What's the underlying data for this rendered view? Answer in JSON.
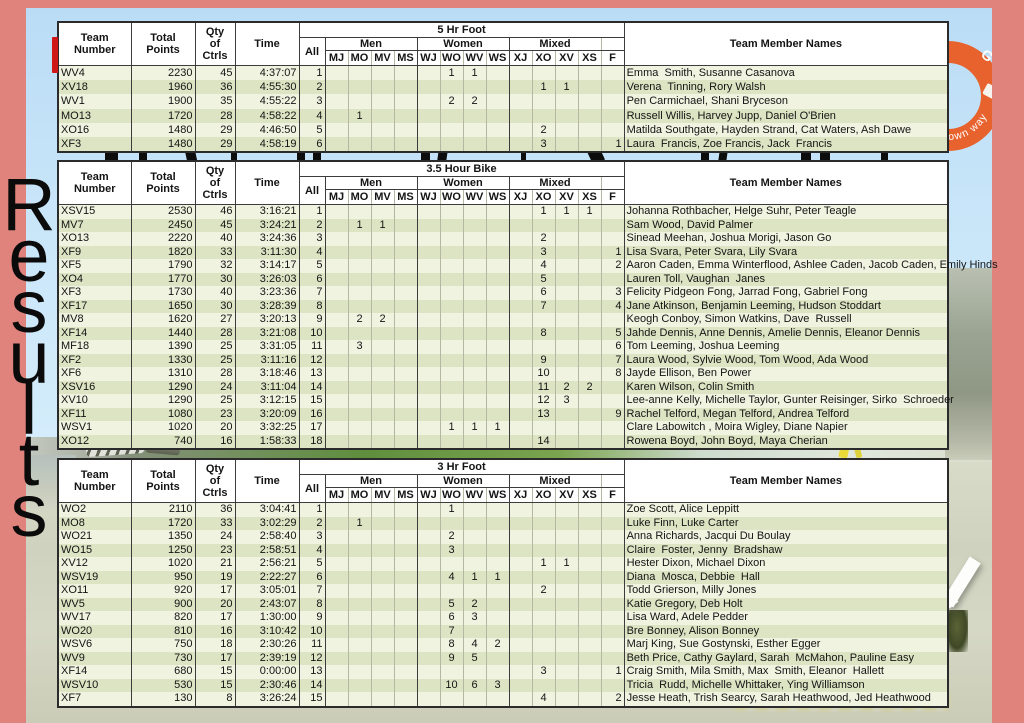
{
  "page": {
    "vertical_title": "Results"
  },
  "colors": {
    "frame_salmon": "#e0837c",
    "logo_orange": "#e8622d",
    "row_light_green": "#f1f3e1",
    "row_dark_green": "#dde4c3"
  },
  "logo": {
    "top_letter": "G",
    "arc_text": "an go your own way"
  },
  "table_columns": {
    "team_lines": [
      "Team",
      "Number"
    ],
    "points_lines": [
      "Total",
      "Points"
    ],
    "qty_lines": [
      "Qty",
      "of",
      "Ctrls"
    ],
    "time": "Time",
    "all": "All",
    "groups": [
      "Men",
      "Women",
      "Mixed"
    ],
    "subcols": [
      "MJ",
      "MO",
      "MV",
      "MS",
      "WJ",
      "WO",
      "WV",
      "WS",
      "XJ",
      "XO",
      "XV",
      "XS"
    ],
    "f": "F",
    "names": "Team Member Names"
  },
  "tables": [
    {
      "title": "5 Hr Foot",
      "rows": [
        {
          "t": "WV4",
          "p": "2230",
          "q": "45",
          "tm": "4:37:07",
          "a": "1",
          "c": [
            "",
            "",
            "",
            "",
            "",
            "1",
            "1",
            "",
            "",
            "",
            "",
            ""
          ],
          "f": "",
          "n": "Emma  Smith, Susanne Casanova"
        },
        {
          "t": "XV18",
          "p": "1960",
          "q": "36",
          "tm": "4:55:30",
          "a": "2",
          "c": [
            "",
            "",
            "",
            "",
            "",
            "",
            "",
            "",
            "",
            "1",
            "1",
            ""
          ],
          "f": "",
          "n": "Verena  Tinning, Rory Walsh"
        },
        {
          "t": "WV1",
          "p": "1900",
          "q": "35",
          "tm": "4:55:22",
          "a": "3",
          "c": [
            "",
            "",
            "",
            "",
            "",
            "2",
            "2",
            "",
            "",
            "",
            "",
            ""
          ],
          "f": "",
          "n": "Pen Carmichael, Shani Bryceson"
        },
        {
          "t": "MO13",
          "p": "1720",
          "q": "28",
          "tm": "4:58:22",
          "a": "4",
          "c": [
            "",
            "1",
            "",
            "",
            "",
            "",
            "",
            "",
            "",
            "",
            "",
            ""
          ],
          "f": "",
          "n": "Russell Willis, Harvey Jupp, Daniel O'Brien"
        },
        {
          "t": "XO16",
          "p": "1480",
          "q": "29",
          "tm": "4:46:50",
          "a": "5",
          "c": [
            "",
            "",
            "",
            "",
            "",
            "",
            "",
            "",
            "",
            "2",
            "",
            ""
          ],
          "f": "",
          "n": "Matilda Southgate, Hayden Strand, Cat Waters, Ash Dawe"
        },
        {
          "t": "XF3",
          "p": "1480",
          "q": "29",
          "tm": "4:58:19",
          "a": "6",
          "c": [
            "",
            "",
            "",
            "",
            "",
            "",
            "",
            "",
            "",
            "3",
            "",
            ""
          ],
          "f": "1",
          "n": "Laura  Francis, Zoe Francis, Jack  Francis"
        }
      ]
    },
    {
      "title": "3.5 Hour Bike",
      "rows": [
        {
          "t": "XSV15",
          "p": "2530",
          "q": "46",
          "tm": "3:16:21",
          "a": "1",
          "c": [
            "",
            "",
            "",
            "",
            "",
            "",
            "",
            "",
            "",
            "1",
            "1",
            "1"
          ],
          "f": "",
          "n": "Johanna Rothbacher, Helge Suhr, Peter Teagle"
        },
        {
          "t": "MV7",
          "p": "2450",
          "q": "45",
          "tm": "3:24:21",
          "a": "2",
          "c": [
            "",
            "1",
            "1",
            "",
            "",
            "",
            "",
            "",
            "",
            "",
            "",
            ""
          ],
          "f": "",
          "n": "Sam Wood, David Palmer"
        },
        {
          "t": "XO13",
          "p": "2220",
          "q": "40",
          "tm": "3:24:36",
          "a": "3",
          "c": [
            "",
            "",
            "",
            "",
            "",
            "",
            "",
            "",
            "",
            "2",
            "",
            ""
          ],
          "f": "",
          "n": "Sinead Meehan, Joshua Morigi, Jason Go"
        },
        {
          "t": "XF9",
          "p": "1820",
          "q": "33",
          "tm": "3:11:30",
          "a": "4",
          "c": [
            "",
            "",
            "",
            "",
            "",
            "",
            "",
            "",
            "",
            "3",
            "",
            ""
          ],
          "f": "1",
          "n": "Lisa Svara, Peter Svara, Lily Svara"
        },
        {
          "t": "XF5",
          "p": "1790",
          "q": "32",
          "tm": "3:14:17",
          "a": "5",
          "c": [
            "",
            "",
            "",
            "",
            "",
            "",
            "",
            "",
            "",
            "4",
            "",
            ""
          ],
          "f": "2",
          "n": "Aaron Caden, Emma Winterflood, Ashlee Caden, Jacob Caden, Emily Hinds"
        },
        {
          "t": "XO4",
          "p": "1770",
          "q": "30",
          "tm": "3:26:03",
          "a": "6",
          "c": [
            "",
            "",
            "",
            "",
            "",
            "",
            "",
            "",
            "",
            "5",
            "",
            ""
          ],
          "f": "",
          "n": "Lauren Toll, Vaughan  Janes"
        },
        {
          "t": "XF3",
          "p": "1730",
          "q": "40",
          "tm": "3:23:36",
          "a": "7",
          "c": [
            "",
            "",
            "",
            "",
            "",
            "",
            "",
            "",
            "",
            "6",
            "",
            ""
          ],
          "f": "3",
          "n": "Felicity Pidgeon Fong, Jarrad Fong, Gabriel Fong"
        },
        {
          "t": "XF17",
          "p": "1650",
          "q": "30",
          "tm": "3:28:39",
          "a": "8",
          "c": [
            "",
            "",
            "",
            "",
            "",
            "",
            "",
            "",
            "",
            "7",
            "",
            ""
          ],
          "f": "4",
          "n": "Jane Atkinson, Benjamin Leeming, Hudson Stoddart"
        },
        {
          "t": "MV8",
          "p": "1620",
          "q": "27",
          "tm": "3:20:13",
          "a": "9",
          "c": [
            "",
            "2",
            "2",
            "",
            "",
            "",
            "",
            "",
            "",
            "",
            "",
            ""
          ],
          "f": "",
          "n": "Keogh Conboy, Simon Watkins, Dave  Russell"
        },
        {
          "t": "XF14",
          "p": "1440",
          "q": "28",
          "tm": "3:21:08",
          "a": "10",
          "c": [
            "",
            "",
            "",
            "",
            "",
            "",
            "",
            "",
            "",
            "8",
            "",
            ""
          ],
          "f": "5",
          "n": "Jahde Dennis, Anne Dennis, Amelie Dennis, Eleanor Dennis"
        },
        {
          "t": "MF18",
          "p": "1390",
          "q": "25",
          "tm": "3:31:05",
          "a": "11",
          "c": [
            "",
            "3",
            "",
            "",
            "",
            "",
            "",
            "",
            "",
            "",
            "",
            ""
          ],
          "f": "6",
          "n": "Tom Leeming, Joshua Leeming"
        },
        {
          "t": "XF2",
          "p": "1330",
          "q": "25",
          "tm": "3:11:16",
          "a": "12",
          "c": [
            "",
            "",
            "",
            "",
            "",
            "",
            "",
            "",
            "",
            "9",
            "",
            ""
          ],
          "f": "7",
          "n": "Laura Wood, Sylvie Wood, Tom Wood, Ada Wood"
        },
        {
          "t": "XF6",
          "p": "1310",
          "q": "28",
          "tm": "3:18:46",
          "a": "13",
          "c": [
            "",
            "",
            "",
            "",
            "",
            "",
            "",
            "",
            "",
            "10",
            "",
            ""
          ],
          "f": "8",
          "n": "Jayde Ellison, Ben Power"
        },
        {
          "t": "XSV16",
          "p": "1290",
          "q": "24",
          "tm": "3:11:04",
          "a": "14",
          "c": [
            "",
            "",
            "",
            "",
            "",
            "",
            "",
            "",
            "",
            "11",
            "2",
            "2"
          ],
          "f": "",
          "n": "Karen Wilson, Colin Smith"
        },
        {
          "t": "XV10",
          "p": "1290",
          "q": "25",
          "tm": "3:12:15",
          "a": "15",
          "c": [
            "",
            "",
            "",
            "",
            "",
            "",
            "",
            "",
            "",
            "12",
            "3",
            ""
          ],
          "f": "",
          "n": "Lee-anne Kelly, Michelle Taylor, Gunter Reisinger, Sirko  Schroeder"
        },
        {
          "t": "XF11",
          "p": "1080",
          "q": "23",
          "tm": "3:20:09",
          "a": "16",
          "c": [
            "",
            "",
            "",
            "",
            "",
            "",
            "",
            "",
            "",
            "13",
            "",
            ""
          ],
          "f": "9",
          "n": "Rachel Telford, Megan Telford, Andrea Telford"
        },
        {
          "t": "WSV1",
          "p": "1020",
          "q": "20",
          "tm": "3:32:25",
          "a": "17",
          "c": [
            "",
            "",
            "",
            "",
            "",
            "1",
            "1",
            "1",
            "",
            "",
            "",
            ""
          ],
          "f": "",
          "n": "Clare Labowitch , Moira Wigley, Diane Napier"
        },
        {
          "t": "XO12",
          "p": "740",
          "q": "16",
          "tm": "1:58:33",
          "a": "18",
          "c": [
            "",
            "",
            "",
            "",
            "",
            "",
            "",
            "",
            "",
            "14",
            "",
            ""
          ],
          "f": "",
          "n": "Rowena Boyd, John Boyd, Maya Cherian"
        }
      ]
    },
    {
      "title": "3 Hr Foot",
      "rows": [
        {
          "t": "WO2",
          "p": "2110",
          "q": "36",
          "tm": "3:04:41",
          "a": "1",
          "c": [
            "",
            "",
            "",
            "",
            "",
            "1",
            "",
            "",
            "",
            "",
            "",
            ""
          ],
          "f": "",
          "n": "Zoe Scott, Alice Leppitt"
        },
        {
          "t": "MO8",
          "p": "1720",
          "q": "33",
          "tm": "3:02:29",
          "a": "2",
          "c": [
            "",
            "1",
            "",
            "",
            "",
            "",
            "",
            "",
            "",
            "",
            "",
            ""
          ],
          "f": "",
          "n": "Luke Finn, Luke Carter"
        },
        {
          "t": "WO21",
          "p": "1350",
          "q": "24",
          "tm": "2:58:40",
          "a": "3",
          "c": [
            "",
            "",
            "",
            "",
            "",
            "2",
            "",
            "",
            "",
            "",
            "",
            ""
          ],
          "f": "",
          "n": "Anna Richards, Jacqui Du Boulay"
        },
        {
          "t": "WO15",
          "p": "1250",
          "q": "23",
          "tm": "2:58:51",
          "a": "4",
          "c": [
            "",
            "",
            "",
            "",
            "",
            "3",
            "",
            "",
            "",
            "",
            "",
            ""
          ],
          "f": "",
          "n": "Claire  Foster, Jenny  Bradshaw"
        },
        {
          "t": "XV12",
          "p": "1020",
          "q": "21",
          "tm": "2:56:21",
          "a": "5",
          "c": [
            "",
            "",
            "",
            "",
            "",
            "",
            "",
            "",
            "",
            "1",
            "1",
            ""
          ],
          "f": "",
          "n": "Hester Dixon, Michael Dixon"
        },
        {
          "t": "WSV19",
          "p": "950",
          "q": "19",
          "tm": "2:22:27",
          "a": "6",
          "c": [
            "",
            "",
            "",
            "",
            "",
            "4",
            "1",
            "1",
            "",
            "",
            "",
            ""
          ],
          "f": "",
          "n": "Diana  Mosca, Debbie  Hall"
        },
        {
          "t": "XO11",
          "p": "920",
          "q": "17",
          "tm": "3:05:01",
          "a": "7",
          "c": [
            "",
            "",
            "",
            "",
            "",
            "",
            "",
            "",
            "",
            "2",
            "",
            ""
          ],
          "f": "",
          "n": "Todd Grierson, Milly Jones"
        },
        {
          "t": "WV5",
          "p": "900",
          "q": "20",
          "tm": "2:43:07",
          "a": "8",
          "c": [
            "",
            "",
            "",
            "",
            "",
            "5",
            "2",
            "",
            "",
            "",
            "",
            ""
          ],
          "f": "",
          "n": "Katie Gregory, Deb Holt"
        },
        {
          "t": "WV17",
          "p": "820",
          "q": "17",
          "tm": "1:30:00",
          "a": "9",
          "c": [
            "",
            "",
            "",
            "",
            "",
            "6",
            "3",
            "",
            "",
            "",
            "",
            ""
          ],
          "f": "",
          "n": "Lisa Ward, Adele Pedder"
        },
        {
          "t": "WO20",
          "p": "810",
          "q": "16",
          "tm": "3:10:42",
          "a": "10",
          "c": [
            "",
            "",
            "",
            "",
            "",
            "7",
            "",
            "",
            "",
            "",
            "",
            ""
          ],
          "f": "",
          "n": "Bre Bonney, Alison Bonney"
        },
        {
          "t": "WSV6",
          "p": "750",
          "q": "18",
          "tm": "2:30:26",
          "a": "11",
          "c": [
            "",
            "",
            "",
            "",
            "",
            "8",
            "4",
            "2",
            "",
            "",
            "",
            ""
          ],
          "f": "",
          "n": "Marj King, Sue Gostynski, Esther Egger"
        },
        {
          "t": "WV9",
          "p": "730",
          "q": "17",
          "tm": "2:39:19",
          "a": "12",
          "c": [
            "",
            "",
            "",
            "",
            "",
            "9",
            "5",
            "",
            "",
            "",
            "",
            ""
          ],
          "f": "",
          "n": "Beth Price, Cathy Gaylard, Sarah  McMahon, Pauline Easy"
        },
        {
          "t": "XF14",
          "p": "680",
          "q": "15",
          "tm": "0:00:00",
          "a": "13",
          "c": [
            "",
            "",
            "",
            "",
            "",
            "",
            "",
            "",
            "",
            "3",
            "",
            ""
          ],
          "f": "1",
          "n": "Craig Smith, Mila Smith, Max  Smith, Eleanor  Hallett"
        },
        {
          "t": "WSV10",
          "p": "530",
          "q": "15",
          "tm": "2:30:46",
          "a": "14",
          "c": [
            "",
            "",
            "",
            "",
            "",
            "10",
            "6",
            "3",
            "",
            "",
            "",
            ""
          ],
          "f": "",
          "n": "Tricia  Rudd, Michelle Whittaker, Ying Williamson"
        },
        {
          "t": "XF7",
          "p": "130",
          "q": "8",
          "tm": "3:26:24",
          "a": "15",
          "c": [
            "",
            "",
            "",
            "",
            "",
            "",
            "",
            "",
            "",
            "4",
            "",
            ""
          ],
          "f": "2",
          "n": "Jesse Heath, Trish Searcy, Sarah Heathwood, Jed Heathwood"
        }
      ]
    }
  ]
}
